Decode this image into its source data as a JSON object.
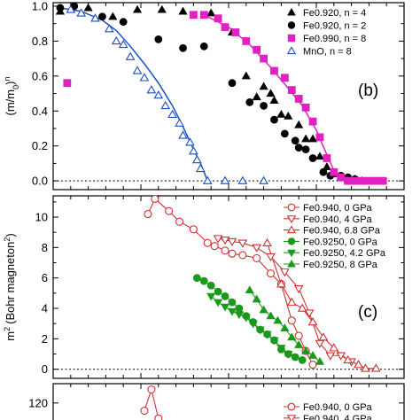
{
  "chart_data": [
    {
      "type": "scatter",
      "panel_label": "(b)",
      "ylabel": "(m/m0)^n",
      "ylim": [
        -0.05,
        1.02
      ],
      "xlim": [
        0,
        1
      ],
      "yticks": [
        "0.0",
        "0.2",
        "0.4",
        "0.6",
        "0.8",
        "1.0"
      ],
      "ytick_values": [
        0,
        0.2,
        0.4,
        0.6,
        0.8,
        1.0
      ],
      "reference_line_y": 0,
      "legend_position": "top-right",
      "series": [
        {
          "name": "Fe0.920, n = 4",
          "marker": "triangle-filled",
          "color": "#000000",
          "x": [
            0.02,
            0.1,
            0.17,
            0.24,
            0.31,
            0.37,
            0.45,
            0.51,
            0.55,
            0.58,
            0.6,
            0.62,
            0.63,
            0.65,
            0.67,
            0.7,
            0.72,
            0.74,
            0.76,
            0.78,
            0.8,
            0.82,
            0.84,
            0.86,
            0.88
          ],
          "y": [
            0.97,
            0.99,
            0.94,
            0.98,
            0.98,
            0.97,
            0.96,
            0.85,
            0.6,
            0.48,
            0.54,
            0.5,
            0.46,
            0.38,
            0.37,
            0.32,
            0.24,
            0.24,
            0.14,
            0.08,
            0.04,
            0.02,
            0.01,
            0.01,
            0.0
          ]
        },
        {
          "name": "Fe0.920, n = 2",
          "marker": "circle-filled",
          "color": "#000000",
          "x": [
            0.02,
            0.06,
            0.14,
            0.2,
            0.3,
            0.37,
            0.43,
            0.51,
            0.56,
            0.6,
            0.63,
            0.66,
            0.69,
            0.7,
            0.72,
            0.74,
            0.77,
            0.79,
            0.82,
            0.84,
            0.86
          ],
          "y": [
            0.99,
            1.0,
            0.94,
            0.91,
            0.81,
            0.76,
            0.77,
            0.56,
            0.45,
            0.43,
            0.35,
            0.27,
            0.23,
            0.19,
            0.18,
            0.13,
            0.05,
            0.03,
            0.03,
            0.02,
            0.01
          ]
        },
        {
          "name": "Fe0.990, n = 8",
          "marker": "square-filled",
          "color": "#e020c0",
          "x": [
            0.04,
            0.4,
            0.43,
            0.47,
            0.49,
            0.52,
            0.55,
            0.58,
            0.6,
            0.63,
            0.66,
            0.68,
            0.7,
            0.72,
            0.74,
            0.76,
            0.78,
            0.8,
            0.82,
            0.84,
            0.86,
            0.88,
            0.9,
            0.92,
            0.94
          ],
          "y": [
            0.56,
            0.95,
            0.95,
            0.93,
            0.88,
            0.85,
            0.8,
            0.75,
            0.7,
            0.63,
            0.59,
            0.52,
            0.47,
            0.42,
            0.34,
            0.25,
            0.13,
            0.05,
            0.02,
            0.0,
            0.0,
            0.0,
            0.0,
            0.0,
            0.0
          ]
        },
        {
          "name": "MnO, n = 8",
          "marker": "triangle-open",
          "color": "#1a4fc8",
          "x": [
            0.05,
            0.08,
            0.12,
            0.16,
            0.18,
            0.2,
            0.22,
            0.24,
            0.26,
            0.28,
            0.3,
            0.32,
            0.34,
            0.36,
            0.37,
            0.39,
            0.4,
            0.41,
            0.42,
            0.44,
            0.49,
            0.54,
            0.6
          ],
          "y": [
            0.98,
            0.96,
            0.93,
            0.87,
            0.8,
            0.78,
            0.71,
            0.63,
            0.59,
            0.52,
            0.49,
            0.43,
            0.38,
            0.33,
            0.26,
            0.22,
            0.17,
            0.12,
            0.07,
            0.0,
            0.0,
            0.0,
            0.0
          ]
        }
      ],
      "fit_lines": [
        {
          "color": "#1a4fc8",
          "x": [
            0.02,
            0.08,
            0.14,
            0.18,
            0.22,
            0.26,
            0.3,
            0.34,
            0.37,
            0.4,
            0.42,
            0.44
          ],
          "y": [
            0.99,
            0.97,
            0.92,
            0.86,
            0.77,
            0.67,
            0.56,
            0.43,
            0.31,
            0.18,
            0.1,
            0.0
          ]
        },
        {
          "color": "#e020c0",
          "x": [
            0.44,
            0.5,
            0.56,
            0.62,
            0.67,
            0.71,
            0.75,
            0.78,
            0.8,
            0.82
          ],
          "y": [
            0.94,
            0.88,
            0.78,
            0.65,
            0.53,
            0.43,
            0.29,
            0.15,
            0.06,
            0.0
          ]
        }
      ],
      "legend": [
        "Fe0.920, n = 4",
        "Fe0.920, n = 2",
        "Fe0.990, n = 8",
        "MnO, n = 8"
      ]
    },
    {
      "type": "line",
      "panel_label": "(c)",
      "ylabel": "m² (Bohr magneton²)",
      "ylim": [
        -0.6,
        11.4
      ],
      "xlim": [
        0,
        1
      ],
      "yticks": [
        "0",
        "2",
        "4",
        "6",
        "8",
        "10"
      ],
      "ytick_values": [
        0,
        2,
        4,
        6,
        8,
        10
      ],
      "reference_line_y": 0,
      "legend_position": "top-right",
      "series": [
        {
          "name": "Fe0.940, 0 GPa",
          "marker": "circle-open",
          "color": "#d03030",
          "x": [
            0.27,
            0.29,
            0.33,
            0.36,
            0.4,
            0.44,
            0.46,
            0.49,
            0.51,
            0.54,
            0.58,
            0.62,
            0.65,
            0.68,
            0.7,
            0.72,
            0.74
          ],
          "y": [
            10.2,
            11.2,
            10.4,
            9.7,
            9.2,
            8.3,
            8.1,
            7.8,
            7.6,
            7.5,
            7.3,
            6.3,
            5.6,
            3.2,
            2.2,
            1.2,
            0.3
          ]
        },
        {
          "name": "Fe0.940, 4 GPa",
          "marker": "triangle-down-open",
          "color": "#d03030",
          "x": [
            0.47,
            0.49,
            0.51,
            0.54,
            0.58,
            0.62,
            0.66,
            0.7,
            0.73,
            0.76,
            0.79,
            0.82,
            0.85
          ],
          "y": [
            8.6,
            8.5,
            8.4,
            8.3,
            8.0,
            7.4,
            6.4,
            5.3,
            3.7,
            1.7,
            0.9,
            0.9,
            0.5
          ]
        },
        {
          "name": "Fe0.940, 6.8 GPa",
          "marker": "triangle-open",
          "color": "#d03030",
          "x": [
            0.61,
            0.65,
            0.68,
            0.71,
            0.74,
            0.77,
            0.8,
            0.84,
            0.87,
            0.89,
            0.92
          ],
          "y": [
            8.3,
            5.6,
            4.4,
            4.0,
            3.1,
            2.1,
            1.4,
            0.6,
            0.3,
            0.05,
            0.05
          ]
        },
        {
          "name": "Fe0.9250, 0 GPa",
          "marker": "circle-filled",
          "color": "#1a9a1a",
          "x": [
            0.41,
            0.43,
            0.45,
            0.47,
            0.49,
            0.51,
            0.53,
            0.55,
            0.57,
            0.59,
            0.61,
            0.63,
            0.65,
            0.67,
            0.69,
            0.71
          ],
          "y": [
            6.0,
            5.8,
            5.5,
            5.1,
            4.8,
            4.4,
            4.0,
            3.5,
            3.1,
            2.6,
            2.3,
            1.9,
            1.3,
            1.0,
            0.8,
            0.6
          ]
        },
        {
          "name": "Fe0.9250, 4.2 GPa",
          "marker": "triangle-down-filled",
          "color": "#1a9a1a",
          "x": [
            0.45,
            0.47,
            0.49,
            0.51,
            0.53,
            0.55,
            0.57,
            0.59,
            0.61,
            0.63,
            0.65,
            0.67
          ],
          "y": [
            4.8,
            4.4,
            4.1,
            3.8,
            3.6,
            3.4,
            3.0,
            2.6,
            2.3,
            1.9,
            1.4,
            1.0
          ]
        },
        {
          "name": "Fe0.9250, 8 GPa",
          "marker": "triangle-filled",
          "color": "#1a9a1a",
          "x": [
            0.56,
            0.58,
            0.6,
            0.62,
            0.64,
            0.66,
            0.68,
            0.7,
            0.72,
            0.74,
            0.76
          ],
          "y": [
            5.2,
            4.6,
            3.9,
            3.5,
            3.2,
            2.7,
            2.1,
            1.6,
            1.2,
            0.9,
            0.5
          ]
        }
      ],
      "legend": [
        "Fe0.940, 0 GPa",
        "Fe0.940, 4 GPa",
        "Fe0.940, 6.8 GPa",
        "Fe0.9250, 0 GPa",
        "Fe0.9250, 4.2 GPa",
        "Fe0.9250, 8 GPa"
      ]
    },
    {
      "type": "line",
      "panel_label": "",
      "ylabel": "",
      "ylim": [
        85,
        140
      ],
      "xlim": [
        0,
        1
      ],
      "yticks": [
        "120"
      ],
      "ytick_values": [
        120
      ],
      "legend_position": "top-right",
      "series": [
        {
          "name": "Fe0.940, 0 GPa",
          "marker": "circle-open",
          "color": "#d03030",
          "x": [
            0.26,
            0.28,
            0.3
          ],
          "y": [
            112,
            134,
            104
          ]
        },
        {
          "name": "Fe0.940, 4 GPa",
          "marker": "triangle-down-open",
          "color": "#d03030",
          "x": [],
          "y": []
        }
      ],
      "legend": [
        "Fe0.940, 0 GPa",
        "Fe0.940, 4 GPa"
      ]
    }
  ]
}
